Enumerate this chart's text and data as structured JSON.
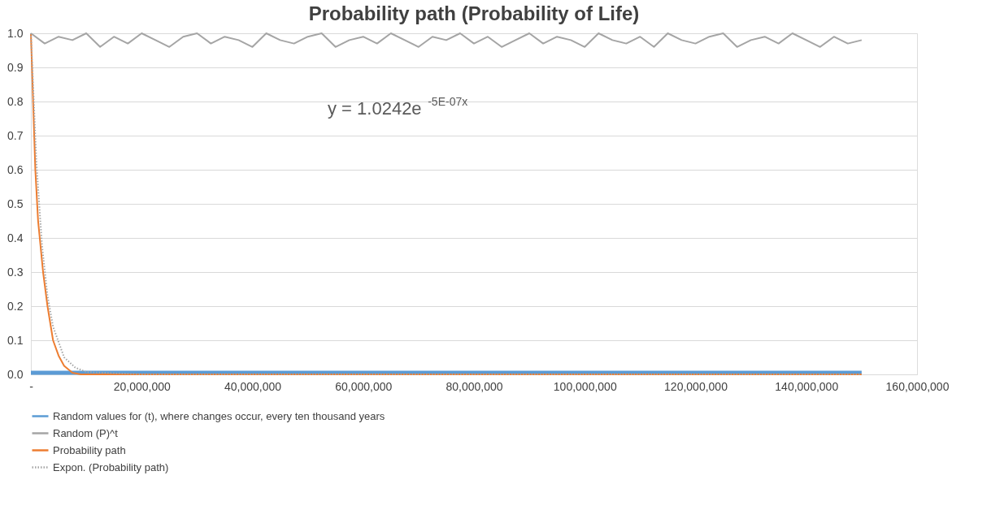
{
  "chart_data": {
    "type": "line",
    "title": "Probability path (Probability  of Life)",
    "xlim": [
      0,
      160000000
    ],
    "xticks": [
      {
        "value": 0,
        "label": "-"
      },
      {
        "value": 20000000,
        "label": "20,000,000"
      },
      {
        "value": 40000000,
        "label": "40,000,000"
      },
      {
        "value": 60000000,
        "label": "60,000,000"
      },
      {
        "value": 80000000,
        "label": "80,000,000"
      },
      {
        "value": 100000000,
        "label": "100,000,000"
      },
      {
        "value": 120000000,
        "label": "120,000,000"
      },
      {
        "value": 140000000,
        "label": "140,000,000"
      },
      {
        "value": 160000000,
        "label": "160,000,000"
      }
    ],
    "ylim": [
      0,
      1.0
    ],
    "yticks": [
      {
        "value": 0,
        "label": "0.0"
      },
      0.1,
      0.2,
      0.3,
      0.4,
      0.5,
      0.6,
      0.7,
      0.8,
      0.9,
      {
        "value": 1.0,
        "label": "1.0"
      }
    ],
    "grid": "y",
    "legend": "bottom",
    "marker": "none",
    "annotations": [
      "y = 1.0242e$^{-5E-07x}$"
    ],
    "series": [
      {
        "name": "Random values for (t), where  changes occur, every ten thousand years",
        "color": "#5b9bd5",
        "line_style": "solid",
        "x": [
          0,
          20000000,
          40000000,
          60000000,
          80000000,
          100000000,
          120000000,
          140000000,
          150000000
        ],
        "values": [
          0.005,
          0.005,
          0.005,
          0.005,
          0.005,
          0.005,
          0.005,
          0.005,
          0.005
        ]
      },
      {
        "name": "Random (P)^t",
        "color": "#a5a5a5",
        "line_style": "solid",
        "x": [
          0,
          2500000,
          5000000,
          7500000,
          10000000,
          12500000,
          15000000,
          17500000,
          20000000,
          22500000,
          25000000,
          27500000,
          30000000,
          32500000,
          35000000,
          37500000,
          40000000,
          42500000,
          45000000,
          47500000,
          50000000,
          52500000,
          55000000,
          57500000,
          60000000,
          62500000,
          65000000,
          67500000,
          70000000,
          72500000,
          75000000,
          77500000,
          80000000,
          82500000,
          85000000,
          87500000,
          90000000,
          92500000,
          95000000,
          97500000,
          100000000,
          102500000,
          105000000,
          107500000,
          110000000,
          112500000,
          115000000,
          117500000,
          120000000,
          122500000,
          125000000,
          127500000,
          130000000,
          132500000,
          135000000,
          137500000,
          140000000,
          142500000,
          145000000,
          147500000,
          150000000
        ],
        "values": [
          1.0,
          0.97,
          0.99,
          0.98,
          1.0,
          0.96,
          0.99,
          0.97,
          1.0,
          0.98,
          0.96,
          0.99,
          1.0,
          0.97,
          0.99,
          0.98,
          0.96,
          1.0,
          0.98,
          0.97,
          0.99,
          1.0,
          0.96,
          0.98,
          0.99,
          0.97,
          1.0,
          0.98,
          0.96,
          0.99,
          0.98,
          1.0,
          0.97,
          0.99,
          0.96,
          0.98,
          1.0,
          0.97,
          0.99,
          0.98,
          0.96,
          1.0,
          0.98,
          0.97,
          0.99,
          0.96,
          1.0,
          0.98,
          0.97,
          0.99,
          1.0,
          0.96,
          0.98,
          0.99,
          0.97,
          1.0,
          0.98,
          0.96,
          0.99,
          0.97,
          0.98
        ]
      },
      {
        "name": "Probability path",
        "color": "#ed7d31",
        "line_style": "solid",
        "x": [
          0,
          400000,
          800000,
          1300000,
          2200000,
          3000000,
          4000000,
          5000000,
          6000000,
          7500000,
          9000000,
          20000000,
          60000000,
          100000000,
          150000000
        ],
        "values": [
          1.0,
          0.8,
          0.6,
          0.45,
          0.3,
          0.2,
          0.1,
          0.055,
          0.025,
          0.005,
          0.0,
          0.0,
          0.0,
          0.0,
          0.0
        ]
      },
      {
        "name": "Expon. (Probability path)",
        "color": "#a5a5a5",
        "line_style": "dotted",
        "x": [
          0,
          1000000,
          2000000,
          3000000,
          4000000,
          6000000,
          8000000,
          10000000,
          20000000,
          60000000,
          100000000,
          150000000
        ],
        "values": [
          1.0,
          0.62,
          0.38,
          0.23,
          0.14,
          0.05,
          0.02,
          0.007,
          0.0,
          0.0,
          0.0,
          0.0
        ]
      }
    ]
  }
}
